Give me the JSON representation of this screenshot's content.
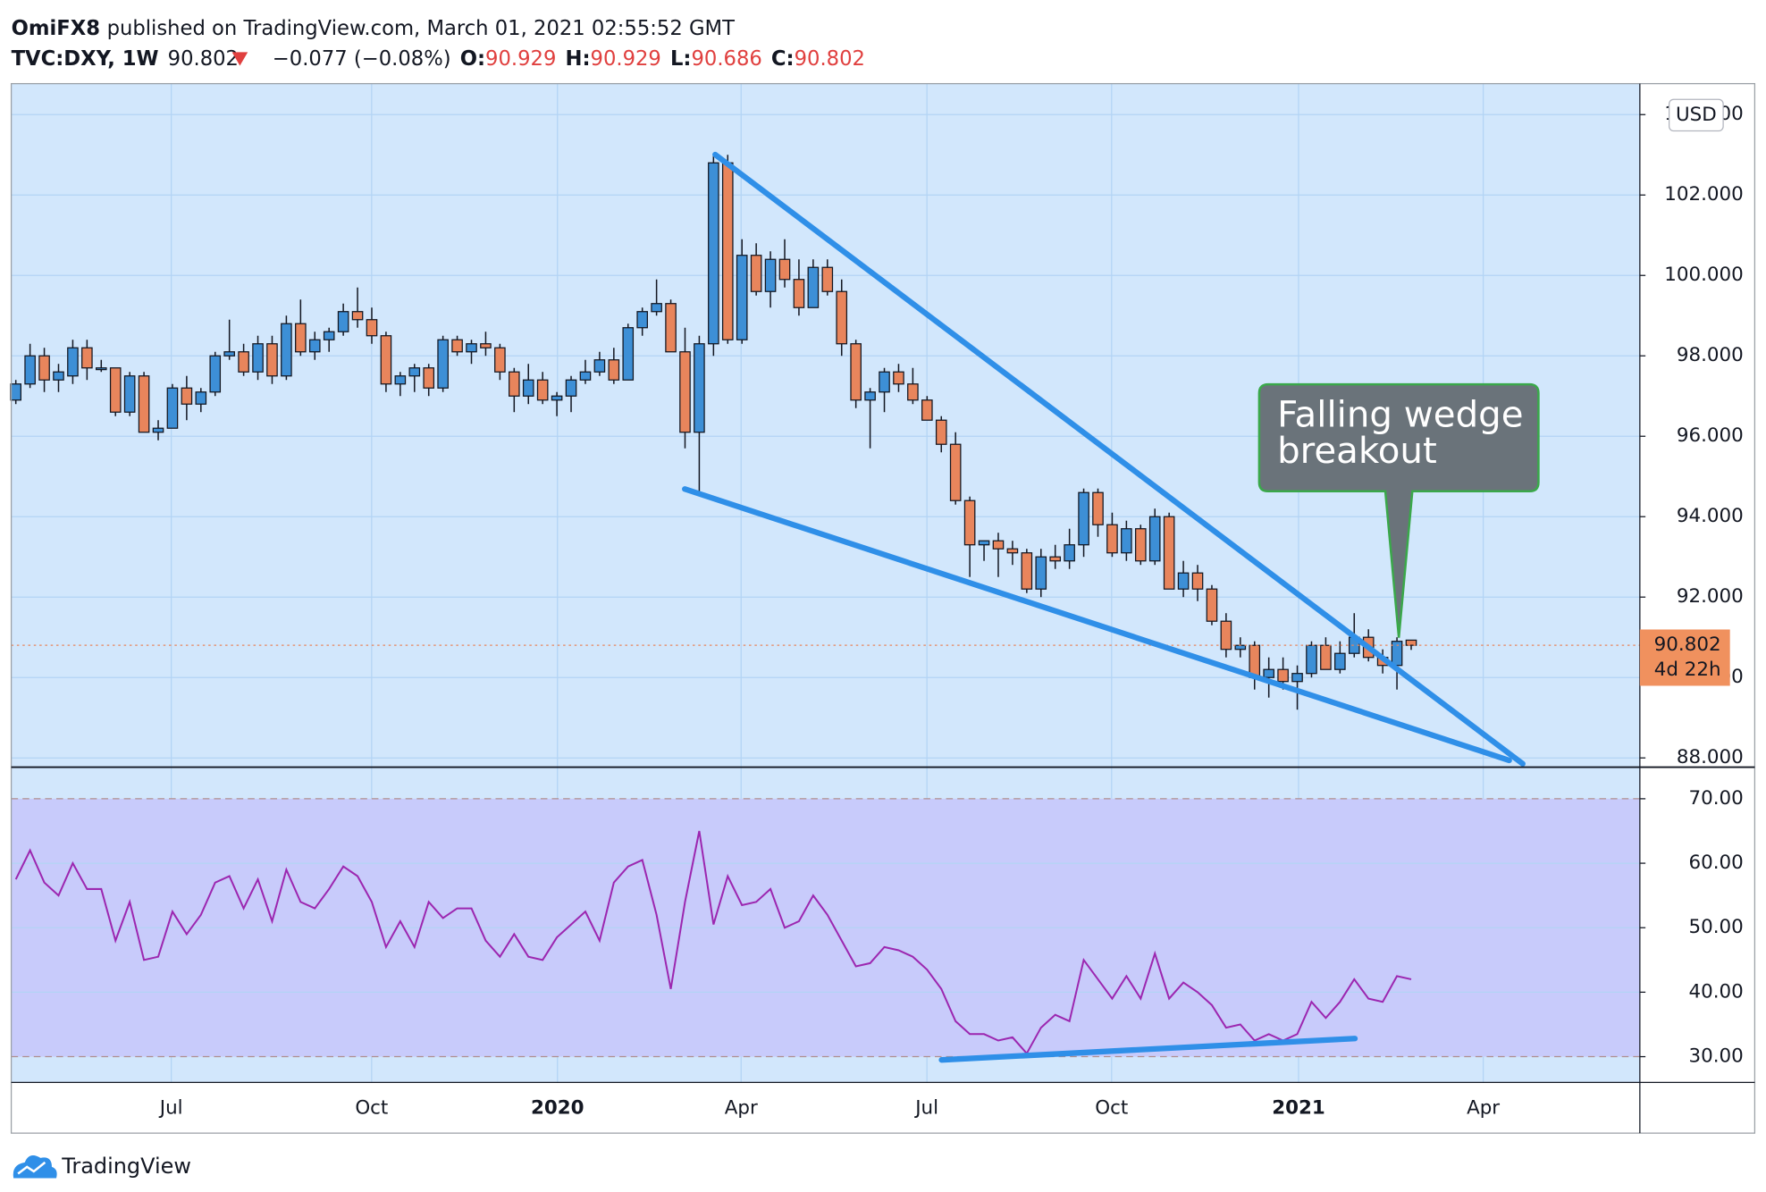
{
  "header": {
    "author": "OmiFX8",
    "published": "published on TradingView.com, March 01, 2021 02:55:52 GMT",
    "symbol": "TVC:DXY, 1W",
    "change": "−0.077 (−0.08%)",
    "open_label": "O:",
    "high_label": "H:",
    "low_label": "L:",
    "close_label": "C:"
  },
  "chart_data": [
    {
      "type": "candlestick",
      "currency": "USD",
      "countdown": "4d 22h",
      "annotation": [
        "Falling wedge",
        "breakout"
      ],
      "up_color": "#3d8fd6",
      "down_color": "#e8855c",
      "grid": true,
      "open": [
        96.9,
        97.3,
        98.0,
        97.4,
        97.5,
        98.2,
        97.7,
        97.7,
        96.6,
        97.5,
        96.1,
        96.2,
        97.2,
        96.8,
        97.1,
        98.0,
        98.1,
        97.6,
        98.3,
        97.5,
        98.8,
        98.1,
        98.4,
        98.6,
        99.1,
        98.9,
        98.5,
        97.3,
        97.5,
        97.7,
        97.2,
        98.4,
        98.1,
        98.3,
        98.2,
        97.6,
        97.0,
        97.4,
        96.9,
        97.0,
        97.4,
        97.6,
        97.9,
        97.4,
        98.7,
        99.1,
        99.3,
        98.1,
        96.1,
        98.3,
        102.8,
        98.4,
        100.5,
        99.6,
        100.4,
        99.9,
        99.2,
        100.2,
        99.6,
        98.3,
        96.9,
        97.1,
        97.6,
        97.3,
        96.9,
        96.4,
        95.8,
        94.4,
        93.3,
        93.4,
        93.2,
        93.1,
        92.2,
        93.0,
        92.9,
        93.3,
        94.6,
        93.8,
        93.1,
        93.7,
        92.9,
        94.0,
        92.2,
        92.6,
        92.2,
        91.4,
        90.7,
        90.8,
        90.0,
        90.2,
        89.9,
        90.1,
        90.8,
        90.2,
        90.6,
        91.0,
        90.5,
        90.3,
        90.929
      ],
      "high": [
        97.4,
        98.3,
        98.2,
        97.8,
        98.4,
        98.4,
        97.9,
        97.7,
        97.6,
        97.6,
        96.4,
        97.3,
        97.5,
        97.2,
        98.1,
        98.9,
        98.3,
        98.5,
        98.5,
        99.0,
        99.4,
        98.6,
        98.7,
        99.3,
        99.7,
        99.2,
        98.6,
        97.6,
        97.8,
        97.8,
        98.5,
        98.5,
        98.4,
        98.6,
        98.3,
        97.7,
        97.8,
        97.6,
        97.1,
        97.5,
        97.9,
        98.1,
        98.2,
        98.8,
        99.2,
        99.9,
        99.4,
        98.7,
        98.5,
        103.0,
        103.0,
        100.9,
        100.8,
        100.6,
        100.9,
        100.4,
        100.4,
        100.4,
        99.9,
        98.4,
        97.2,
        97.7,
        97.8,
        97.7,
        97.0,
        96.5,
        96.1,
        94.5,
        93.4,
        93.6,
        93.4,
        93.2,
        93.2,
        93.3,
        93.7,
        94.7,
        94.7,
        94.1,
        93.9,
        93.8,
        94.2,
        94.1,
        92.9,
        92.8,
        92.3,
        91.6,
        91.0,
        90.9,
        90.5,
        90.5,
        90.3,
        90.9,
        91.0,
        90.9,
        91.6,
        91.2,
        90.7,
        91.0,
        90.929
      ],
      "low": [
        96.8,
        97.2,
        97.1,
        97.1,
        97.3,
        97.4,
        97.6,
        96.5,
        96.5,
        96.1,
        95.9,
        96.2,
        96.4,
        96.6,
        97.0,
        97.9,
        97.5,
        97.4,
        97.3,
        97.4,
        98.0,
        97.9,
        98.1,
        98.5,
        98.7,
        98.3,
        97.1,
        97.0,
        97.1,
        97.0,
        97.1,
        98.0,
        97.8,
        98.0,
        97.4,
        96.6,
        96.8,
        96.8,
        96.5,
        96.6,
        97.3,
        97.5,
        97.3,
        97.4,
        98.5,
        99.0,
        98.1,
        95.7,
        94.6,
        98.0,
        98.3,
        98.3,
        99.5,
        99.2,
        99.7,
        99.0,
        99.2,
        99.5,
        98.0,
        96.7,
        95.7,
        96.6,
        97.1,
        96.8,
        96.4,
        95.6,
        94.3,
        92.5,
        92.9,
        92.5,
        92.8,
        92.1,
        92.0,
        92.7,
        92.7,
        93.0,
        93.5,
        93.0,
        92.9,
        92.8,
        92.8,
        92.2,
        92.0,
        91.9,
        91.3,
        90.5,
        90.5,
        89.7,
        89.5,
        89.7,
        89.2,
        90.0,
        90.2,
        90.1,
        90.5,
        90.4,
        90.1,
        89.7,
        90.686
      ],
      "close": [
        97.3,
        98.0,
        97.4,
        97.6,
        98.2,
        97.7,
        97.7,
        96.6,
        97.5,
        96.1,
        96.2,
        97.2,
        96.8,
        97.1,
        98.0,
        98.1,
        97.6,
        98.3,
        97.5,
        98.8,
        98.1,
        98.4,
        98.6,
        99.1,
        98.9,
        98.5,
        97.3,
        97.5,
        97.7,
        97.2,
        98.4,
        98.1,
        98.3,
        98.2,
        97.6,
        97.0,
        97.4,
        96.9,
        97.0,
        97.4,
        97.6,
        97.9,
        97.4,
        98.7,
        99.1,
        99.3,
        98.1,
        96.1,
        98.3,
        102.8,
        98.4,
        100.5,
        99.6,
        100.4,
        99.9,
        99.2,
        100.2,
        99.6,
        98.3,
        96.9,
        97.1,
        97.6,
        97.3,
        96.9,
        96.4,
        95.8,
        94.4,
        93.3,
        93.4,
        93.2,
        93.1,
        92.2,
        93.0,
        92.9,
        93.3,
        94.6,
        93.8,
        93.1,
        93.7,
        92.9,
        94.0,
        92.2,
        92.6,
        92.2,
        91.4,
        90.7,
        90.8,
        90.0,
        90.2,
        89.9,
        90.1,
        90.8,
        90.2,
        90.6,
        91.0,
        90.5,
        90.3,
        90.9,
        90.802
      ],
      "xlim": [
        -0.32,
        114.06
      ],
      "xticks": [
        {
          "value": 10.92,
          "label": "Jul"
        },
        {
          "value": 24.99,
          "label": "Oct"
        },
        {
          "value": 38.04,
          "label": "2020"
        },
        {
          "value": 50.94,
          "label": "Apr"
        },
        {
          "value": 63.99,
          "label": "Jul"
        },
        {
          "value": 76.96,
          "label": "Oct"
        },
        {
          "value": 90.09,
          "label": "2021"
        },
        {
          "value": 103.06,
          "label": "Apr"
        }
      ],
      "ylim": [
        87.77,
        104.77
      ],
      "yticks": [
        {
          "value": 88,
          "label": "88.000"
        },
        {
          "value": 90,
          "label": "90.000"
        },
        {
          "value": 92,
          "label": "92.000"
        },
        {
          "value": 94,
          "label": "94.000"
        },
        {
          "value": 96,
          "label": "96.000"
        },
        {
          "value": 98,
          "label": "98.000"
        },
        {
          "value": 100,
          "label": "100.000"
        },
        {
          "value": 102,
          "label": "102.000"
        },
        {
          "value": 104,
          "label": "104.000"
        }
      ]
    },
    {
      "type": "line",
      "color": "#9c27b0",
      "band_color": "#c8cbfb",
      "values": [
        57.5,
        62,
        57,
        55,
        60,
        56,
        56,
        48,
        54,
        45,
        45.5,
        52.5,
        49,
        52,
        57,
        58,
        53,
        57.5,
        51,
        59,
        54,
        53,
        56,
        59.5,
        58,
        54,
        47,
        51,
        47,
        54,
        51.5,
        53,
        53,
        48,
        45.5,
        49,
        45.5,
        45,
        48.5,
        50.5,
        52.5,
        48,
        57,
        59.5,
        60.5,
        52,
        40.5,
        54,
        65,
        50.5,
        58,
        53.5,
        54,
        56,
        50,
        51,
        55,
        52,
        48,
        44,
        44.5,
        47,
        46.5,
        45.5,
        43.5,
        40.5,
        35.5,
        33.5,
        33.5,
        32.5,
        33,
        30.5,
        34.5,
        36.5,
        35.5,
        45,
        42,
        39,
        42.5,
        39,
        46,
        39,
        41.5,
        40,
        38,
        34.5,
        35,
        32.5,
        33.5,
        32.5,
        33.5,
        38.5,
        36,
        38.5,
        42,
        39,
        38.5,
        42.5,
        42
      ],
      "ylim": [
        26,
        74.9
      ],
      "yticks": [
        {
          "value": 30,
          "label": "30.00"
        },
        {
          "value": 40,
          "label": "40.00"
        },
        {
          "value": 50,
          "label": "50.00"
        },
        {
          "value": 60,
          "label": "60.00"
        },
        {
          "value": 70,
          "label": "70.00"
        }
      ]
    }
  ],
  "footer": {
    "brand": "TradingView"
  }
}
